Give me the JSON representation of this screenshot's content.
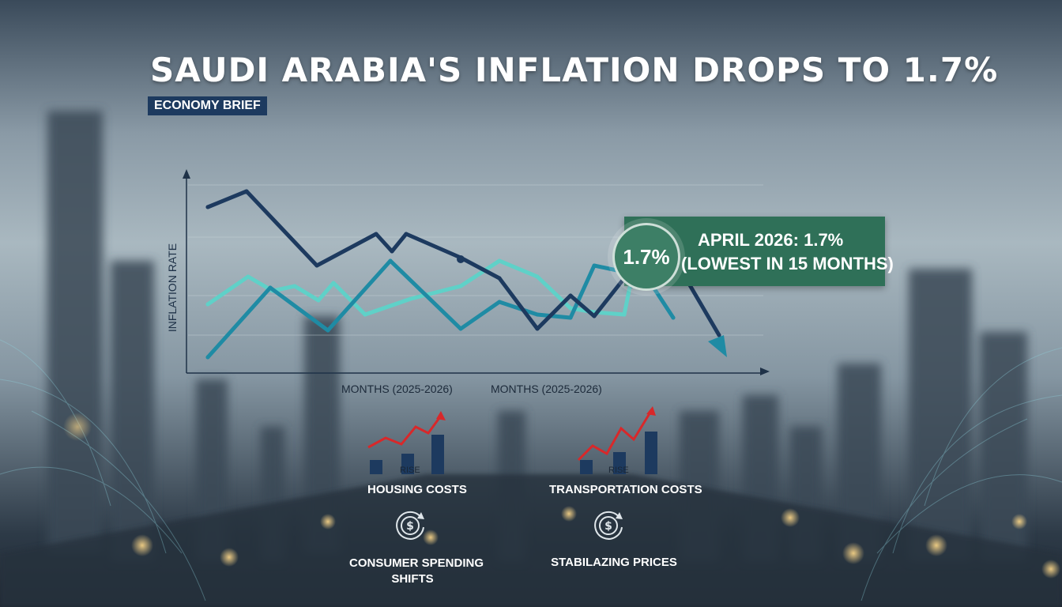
{
  "title": "SAUDI ARABIA'S INFLATION DROPS TO 1.7%",
  "badge": "ECONOMY BRIEF",
  "colors": {
    "dark_line": "#1d3a5f",
    "teal_line": "#1f8ba4",
    "light_line": "#5fd1c8",
    "callout_bg": "#2f7058",
    "rise_red": "#d8282a",
    "bar_navy": "#1d3a5f"
  },
  "callout": {
    "percent": "1.7%",
    "line1": "APRIL 2026: 1.7%",
    "line2": "(LOWEST IN 15 MONTHS)"
  },
  "chart_data": {
    "type": "line",
    "ylabel": "INFLATION RATE",
    "xlabels": [
      "MONTHS (2025-2026)",
      "MONTHS (2025-2026)"
    ],
    "grid": true,
    "series": [
      {
        "values": [
          262,
          242,
          336,
          296,
          318,
          296,
          326,
          352,
          416,
          374,
          400,
          352,
          325,
          424
        ]
      },
      {
        "values": [
          385,
          350,
          368,
          362,
          380,
          358,
          398,
          378,
          362,
          330,
          350,
          390,
          395,
          398,
          348,
          340
        ]
      },
      {
        "values": [
          452,
          364,
          418,
          330,
          416,
          382,
          398,
          402,
          336,
          344,
          362,
          356,
          402
        ]
      }
    ]
  },
  "indicators": [
    {
      "label": "HOUSING COSTS",
      "sublabel": "RISE",
      "icon": "rising-bar-chart-icon"
    },
    {
      "label": "TRANSPORTATION COSTS",
      "sublabel": "RISE",
      "icon": "rising-bar-chart-icon"
    },
    {
      "label_lines": [
        "CONSUMER SPENDING",
        "SHIFTS"
      ],
      "icon": "dollar-cycle-icon"
    },
    {
      "label": "STABILAZING PRICES",
      "icon": "dollar-cycle-icon"
    }
  ]
}
